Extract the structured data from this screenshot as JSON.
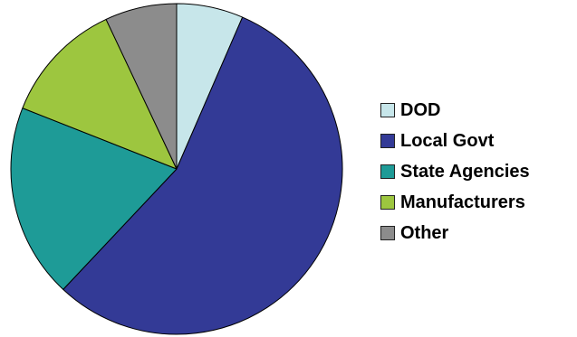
{
  "chart_data": {
    "type": "pie",
    "title": "",
    "legend_position": "right",
    "start_angle": "top, clockwise",
    "series": [
      {
        "name": "DOD",
        "value": 6.5,
        "color": "#c7e6ea"
      },
      {
        "name": "Local Govt",
        "value": 55.5,
        "color": "#333a96"
      },
      {
        "name": "State Agencies",
        "value": 19,
        "color": "#1e9b97"
      },
      {
        "name": "Manufacturers",
        "value": 12,
        "color": "#9dc63f"
      },
      {
        "name": "Other",
        "value": 7,
        "color": "#8c8c8c"
      }
    ]
  }
}
